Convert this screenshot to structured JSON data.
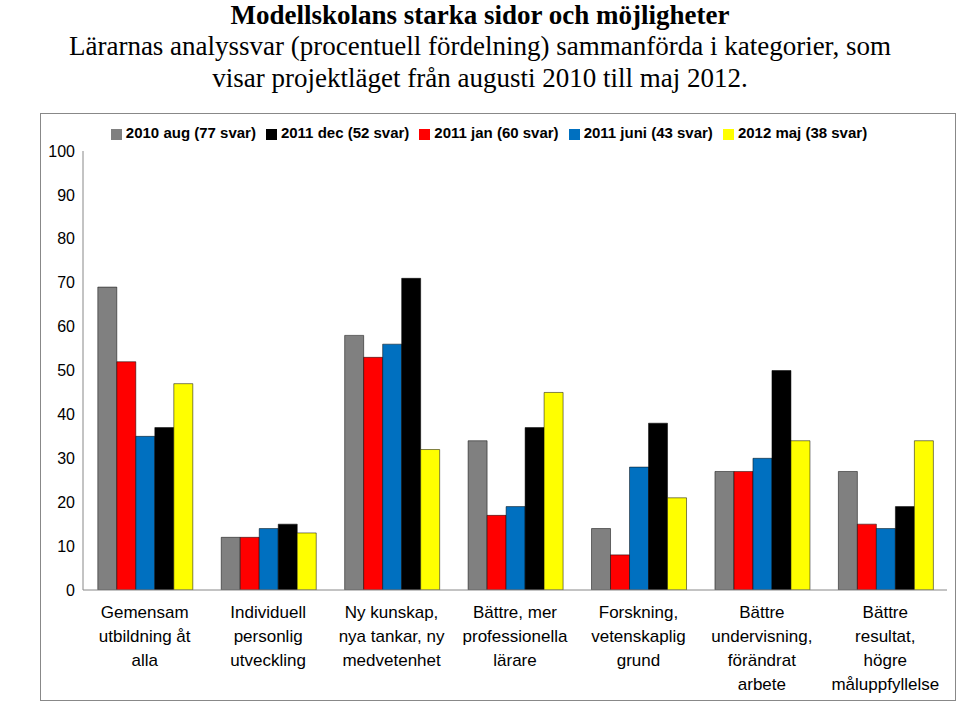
{
  "chart_data": {
    "type": "bar",
    "title": "Modellskolans starka sidor och möjligheter",
    "subtitle": "Lärarnas analyssvar (procentuell fördelning) sammanförda i kategorier, som visar projektläget från augusti 2010 till maj 2012.",
    "categories": [
      "Gemensam utbildning åt alla",
      "Individuell personlig utveckling",
      "Ny kunskap, nya tankar, ny medvetenhet",
      "Bättre, mer professionella lärare",
      "Forskning, vetenskaplig grund",
      "Bättre undervisning, förändrat arbete",
      "Bättre resultat, högre måluppfyllelse"
    ],
    "series": [
      {
        "name": "2010 aug (77 svar)",
        "color": "#808080",
        "values": [
          69,
          12,
          58,
          34,
          14,
          27,
          27
        ]
      },
      {
        "name": "2011 jan (60 svar)",
        "color": "#ff0000",
        "values": [
          52,
          12,
          53,
          17,
          8,
          27,
          15
        ]
      },
      {
        "name": "2011 juni (43 svar)",
        "color": "#0070c0",
        "values": [
          35,
          14,
          56,
          19,
          28,
          30,
          14
        ]
      },
      {
        "name": "2011 dec (52 svar)",
        "color": "#000000",
        "values": [
          37,
          15,
          71,
          37,
          38,
          50,
          19
        ]
      },
      {
        "name": "2012 maj (38 svar)",
        "color": "#ffff00",
        "values": [
          47,
          13,
          32,
          45,
          21,
          34,
          34
        ]
      }
    ],
    "ylim": [
      0,
      100
    ],
    "yticks": [
      0,
      10,
      20,
      30,
      40,
      50,
      60,
      70,
      80,
      90,
      100
    ],
    "grid": false,
    "legend": "top"
  }
}
